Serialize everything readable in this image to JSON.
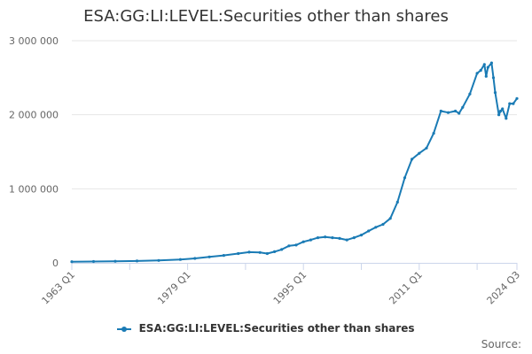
{
  "colors": {
    "series": "#1a7bb5",
    "grid": "#e6e6e6",
    "axis": "#ccd6eb"
  },
  "legend": {
    "label": "ESA:GG:LI:LEVEL:Securities other than shares"
  },
  "credits": {
    "label": "Source:"
  },
  "chart_data": {
    "type": "line",
    "title": "ESA:GG:LI:LEVEL:Securities other than shares",
    "xlabel": "",
    "ylabel": "",
    "x_ticks": [
      "1963 Q1",
      "1979 Q1",
      "1995 Q1",
      "2011 Q1",
      "2024 Q3"
    ],
    "y_ticks": [
      {
        "value": 0,
        "label": "0"
      },
      {
        "value": 1000000,
        "label": "1 000 000"
      },
      {
        "value": 2000000,
        "label": "2 000 000"
      },
      {
        "value": 3000000,
        "label": "3 000 000"
      }
    ],
    "ylim": [
      0,
      3000000
    ],
    "xlim": [
      1963.0,
      2024.5
    ],
    "grid": "horizontal",
    "legend_position": "bottom",
    "series": [
      {
        "name": "ESA:GG:LI:LEVEL:Securities other than shares",
        "x": [
          1963,
          1966,
          1969,
          1972,
          1975,
          1978,
          1980,
          1982,
          1984,
          1986,
          1987.5,
          1989,
          1990,
          1991,
          1992,
          1993,
          1994,
          1995,
          1996,
          1997,
          1998,
          1999,
          2000,
          2001,
          2002,
          2003,
          2004,
          2005,
          2006,
          2007,
          2008,
          2009,
          2010,
          2011,
          2012,
          2013,
          2014,
          2015,
          2016,
          2016.5,
          2017,
          2018,
          2019,
          2019.5,
          2020,
          2020.25,
          2020.5,
          2021,
          2021.25,
          2021.5,
          2022,
          2022.25,
          2022.5,
          2023,
          2023.5,
          2024,
          2024.5
        ],
        "y": [
          15000,
          18000,
          22000,
          25000,
          32000,
          45000,
          60000,
          80000,
          100000,
          125000,
          145000,
          140000,
          125000,
          150000,
          180000,
          230000,
          240000,
          285000,
          310000,
          340000,
          350000,
          340000,
          330000,
          310000,
          340000,
          375000,
          430000,
          480000,
          520000,
          600000,
          820000,
          1150000,
          1400000,
          1480000,
          1550000,
          1750000,
          2050000,
          2030000,
          2050000,
          2020000,
          2100000,
          2280000,
          2560000,
          2600000,
          2680000,
          2520000,
          2640000,
          2700000,
          2500000,
          2300000,
          2000000,
          2050000,
          2080000,
          1950000,
          2150000,
          2150000,
          2220000
        ]
      }
    ]
  }
}
